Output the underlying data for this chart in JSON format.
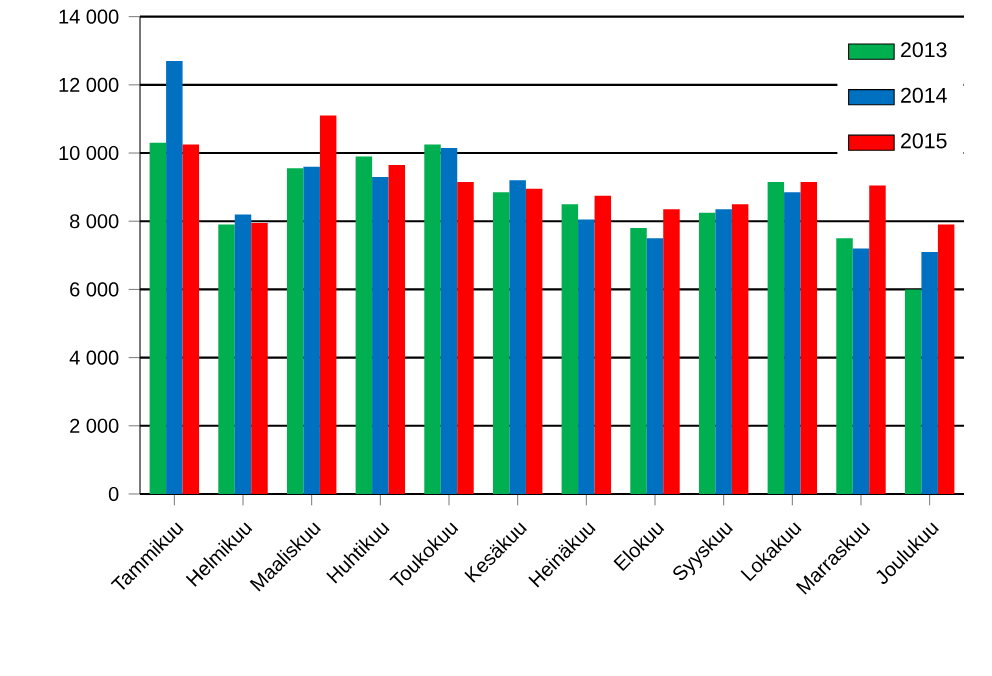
{
  "chart_data": {
    "type": "bar",
    "categories": [
      "Tammikuu",
      "Helmikuu",
      "Maaliskuu",
      "Huhtikuu",
      "Toukokuu",
      "Kesäkuu",
      "Heinäkuu",
      "Elokuu",
      "Syyskuu",
      "Lokakuu",
      "Marraskuu",
      "Joulukuu"
    ],
    "series": [
      {
        "name": "2013",
        "color": "#00b050",
        "values": [
          10300,
          7900,
          9550,
          9900,
          10250,
          8850,
          8500,
          7800,
          8250,
          9150,
          7500,
          6000
        ]
      },
      {
        "name": "2014",
        "color": "#0070c0",
        "values": [
          12700,
          8200,
          9600,
          9300,
          10150,
          9200,
          8050,
          7500,
          8350,
          8850,
          7200,
          7100
        ]
      },
      {
        "name": "2015",
        "color": "#ff0000",
        "values": [
          10250,
          7950,
          11100,
          9650,
          9150,
          8950,
          8750,
          8350,
          8500,
          9150,
          9050,
          7900
        ]
      }
    ],
    "ylim": [
      0,
      14000
    ],
    "yticks": [
      {
        "value": 0,
        "label": "0"
      },
      {
        "value": 2000,
        "label": "2 000"
      },
      {
        "value": 4000,
        "label": "4 000"
      },
      {
        "value": 6000,
        "label": "6 000"
      },
      {
        "value": 8000,
        "label": "8 000"
      },
      {
        "value": 10000,
        "label": "10 000"
      },
      {
        "value": 12000,
        "label": "12 000"
      },
      {
        "value": 14000,
        "label": "14 000"
      }
    ],
    "grid": "y",
    "legend": "top right"
  }
}
